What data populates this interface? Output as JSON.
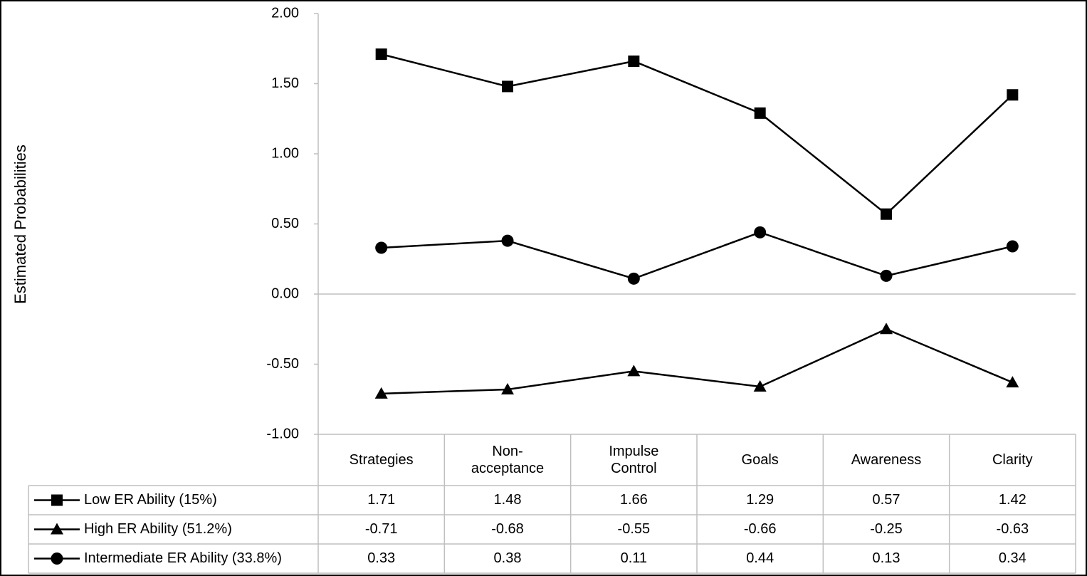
{
  "chart_data": {
    "type": "line",
    "y_label": "Estimated Probabilities",
    "categories": [
      "Strategies",
      "Non-acceptance",
      "Impulse Control",
      "Goals",
      "Awareness",
      "Clarity"
    ],
    "series": [
      {
        "name": "Low ER Ability (15%)",
        "color": "#000000",
        "marker": "square",
        "values": [
          1.71,
          1.48,
          1.66,
          1.29,
          0.57,
          1.42
        ]
      },
      {
        "name": "High ER Ability (51.2%)",
        "color": "#000000",
        "marker": "triangle",
        "values": [
          -0.71,
          -0.68,
          -0.55,
          -0.66,
          -0.25,
          -0.63
        ]
      },
      {
        "name": "Intermediate ER Ability (33.8%)",
        "color": "#000000",
        "marker": "circle",
        "values": [
          0.33,
          0.38,
          0.11,
          0.44,
          0.13,
          0.34
        ]
      }
    ],
    "ylim": [
      -1,
      2
    ],
    "yticks": [
      {
        "value": -1,
        "label": "-1.00"
      },
      {
        "value": -0.5,
        "label": "-0.50"
      },
      {
        "value": 0,
        "label": "0.00"
      },
      {
        "value": 0.5,
        "label": "0.50"
      },
      {
        "value": 1,
        "label": "1.00"
      },
      {
        "value": 1.5,
        "label": "1.50"
      },
      {
        "value": 2,
        "label": "2.00"
      }
    ],
    "data_table": true
  }
}
